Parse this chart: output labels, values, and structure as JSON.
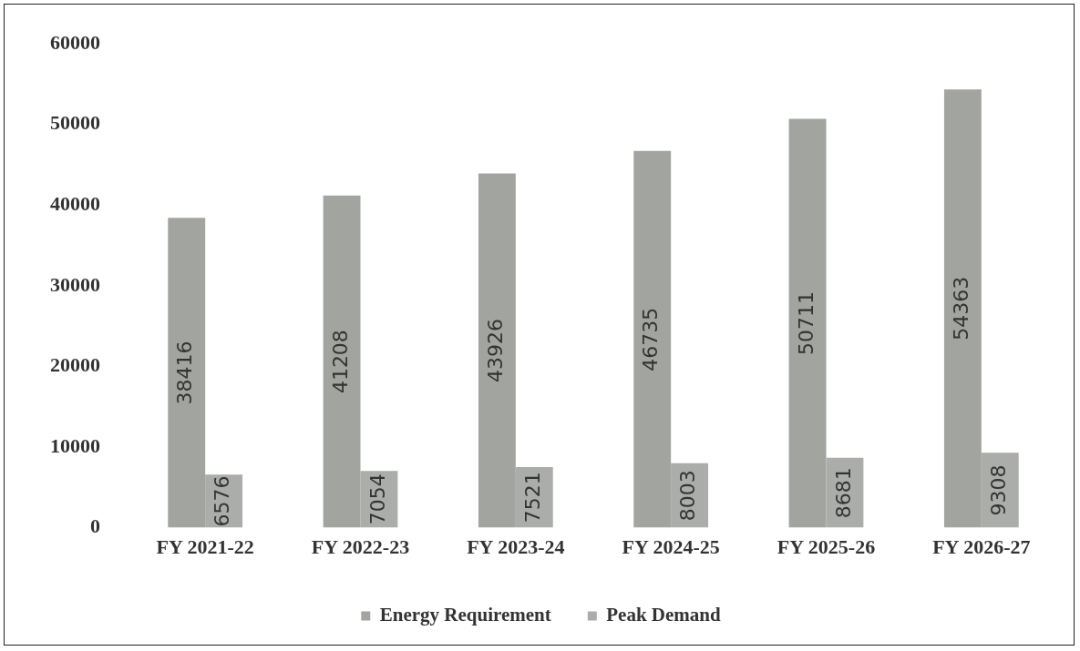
{
  "chart_data": {
    "type": "bar",
    "categories": [
      "FY 2021-22",
      "FY 2022-23",
      "FY 2023-24",
      "FY 2024-25",
      "FY 2025-26",
      "FY 2026-27"
    ],
    "series": [
      {
        "name": "Energy Requirement",
        "color": "#a2a59f",
        "values": [
          38416,
          41208,
          43926,
          46735,
          50711,
          54363
        ]
      },
      {
        "name": "Peak Demand",
        "color": "#abadaa",
        "values": [
          6576,
          7054,
          7521,
          8003,
          8681,
          9308
        ]
      }
    ],
    "ylim": [
      0,
      60000
    ],
    "yticks": [
      0,
      10000,
      20000,
      30000,
      40000,
      50000,
      60000
    ],
    "grid": false,
    "legend": "bottom",
    "data_labels": true
  }
}
